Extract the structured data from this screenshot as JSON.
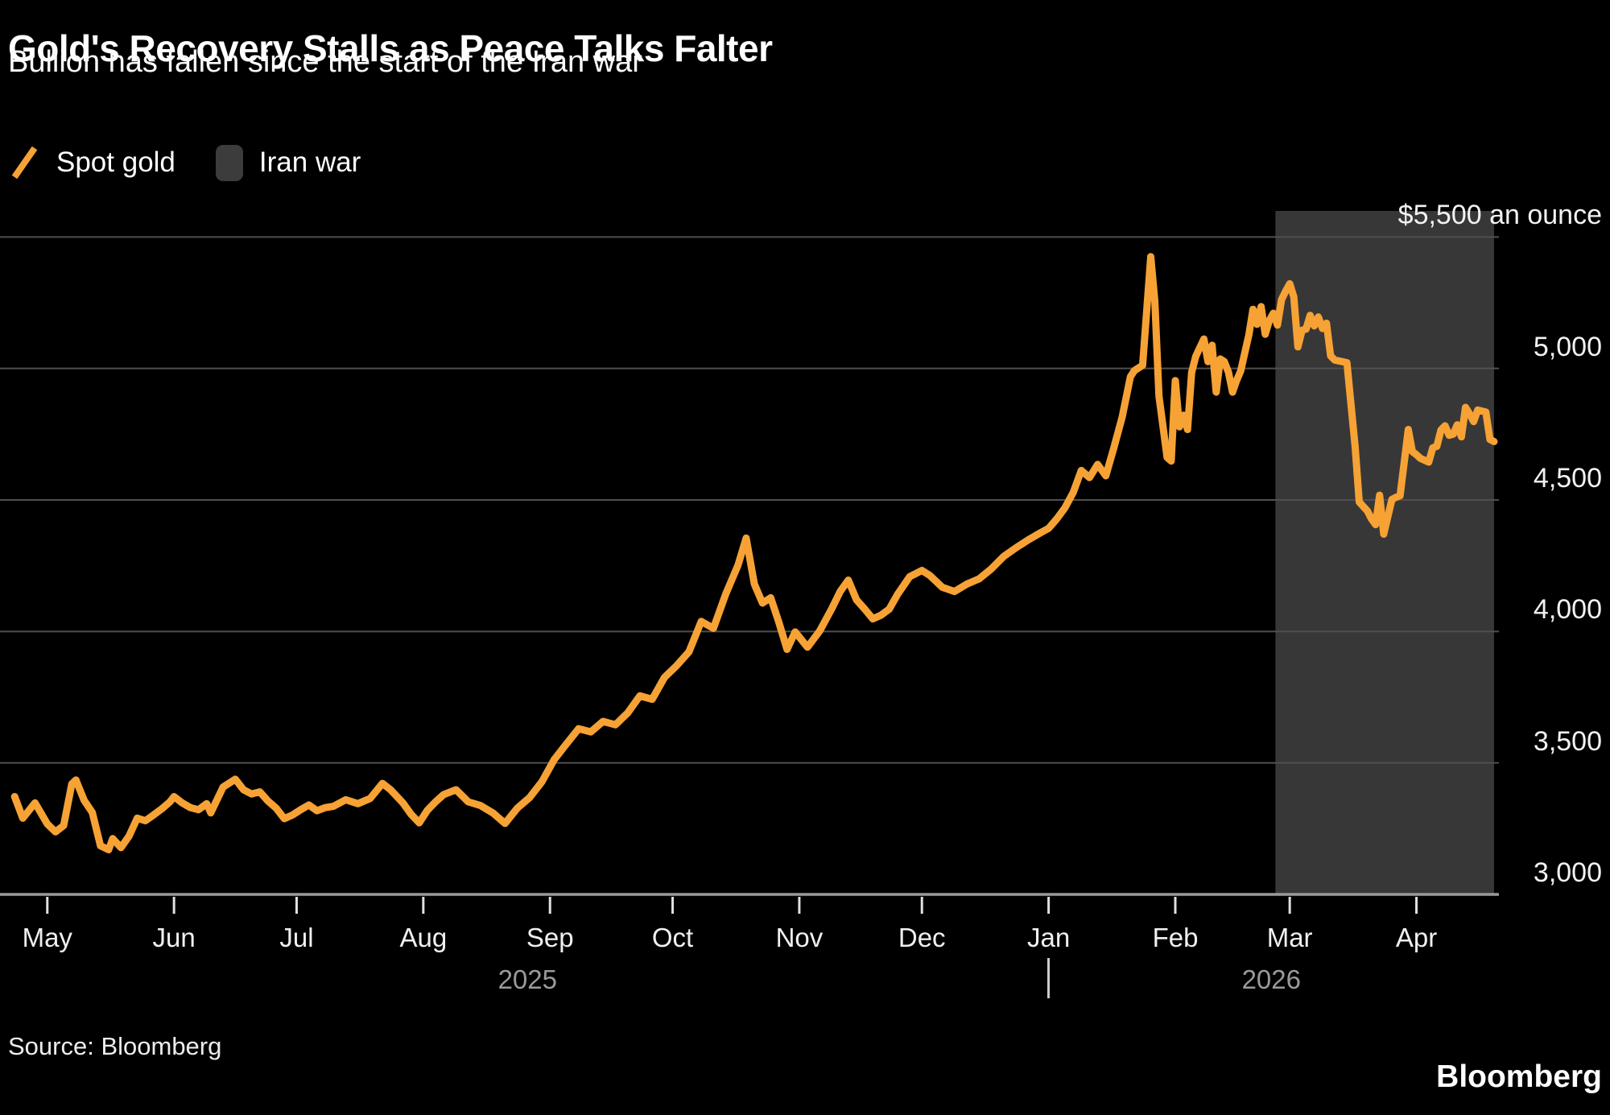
{
  "header": {
    "title": "Gold's Recovery Stalls as Peace Talks Falter",
    "subtitle": "Bullion has fallen since the start of the Iran war"
  },
  "legend": [
    {
      "label": "Spot gold",
      "type": "line",
      "color": "#F6A235"
    },
    {
      "label": "Iran war",
      "type": "box",
      "color": "#3c3c3c"
    }
  ],
  "footer": {
    "source": "Source: Bloomberg",
    "logo": "Bloomberg"
  },
  "chart_data": {
    "type": "line",
    "title": "Gold's Recovery Stalls as Peace Talks Falter",
    "subtitle": "Bullion has fallen since the start of the Iran war",
    "ylabel": "$ an ounce",
    "ylim": [
      3000,
      5600
    ],
    "grid": "horizontal",
    "legend_position": "top-left",
    "colors": {
      "line": "#F6A235",
      "band": "#373737",
      "gridline": "#4f4f4f",
      "axis": "#9a9a9a",
      "tick": "#e0e0e0",
      "background": "#000000"
    },
    "x_domain_days": 364,
    "y_ticks": [
      {
        "value": 5500,
        "label": "$5,500 an ounce"
      },
      {
        "value": 5000,
        "label": "5,000"
      },
      {
        "value": 4500,
        "label": "4,500"
      },
      {
        "value": 4000,
        "label": "4,000"
      },
      {
        "value": 3500,
        "label": "3,500"
      },
      {
        "value": 3000,
        "label": "3,000"
      }
    ],
    "x_ticks": [
      {
        "day": 10,
        "label": "May"
      },
      {
        "day": 41,
        "label": "Jun"
      },
      {
        "day": 71,
        "label": "Jul"
      },
      {
        "day": 102,
        "label": "Aug"
      },
      {
        "day": 133,
        "label": "Sep"
      },
      {
        "day": 163,
        "label": "Oct"
      },
      {
        "day": 194,
        "label": "Nov"
      },
      {
        "day": 224,
        "label": "Dec"
      },
      {
        "day": 255,
        "label": "Jan"
      },
      {
        "day": 286,
        "label": "Feb"
      },
      {
        "day": 314,
        "label": "Mar"
      },
      {
        "day": 345,
        "label": "Apr"
      }
    ],
    "year_labels": [
      {
        "day": 127.5,
        "label": "2025"
      },
      {
        "day": 309.5,
        "label": "2026"
      }
    ],
    "year_divider_day": 255,
    "band": {
      "name": "Iran war",
      "start_day": 310.5,
      "end_day": 364
    },
    "series": [
      {
        "name": "Spot gold",
        "points": [
          [
            2,
            3372
          ],
          [
            4,
            3290
          ],
          [
            7,
            3348
          ],
          [
            10,
            3268
          ],
          [
            12,
            3238
          ],
          [
            14,
            3262
          ],
          [
            16,
            3420
          ],
          [
            17,
            3435
          ],
          [
            19,
            3358
          ],
          [
            21,
            3312
          ],
          [
            23,
            3185
          ],
          [
            25,
            3170
          ],
          [
            26,
            3212
          ],
          [
            28,
            3178
          ],
          [
            30,
            3222
          ],
          [
            32,
            3290
          ],
          [
            34,
            3280
          ],
          [
            36,
            3302
          ],
          [
            38,
            3325
          ],
          [
            40,
            3352
          ],
          [
            41,
            3372
          ],
          [
            43,
            3348
          ],
          [
            45,
            3330
          ],
          [
            47,
            3322
          ],
          [
            49,
            3345
          ],
          [
            50,
            3310
          ],
          [
            53,
            3408
          ],
          [
            56,
            3438
          ],
          [
            58,
            3398
          ],
          [
            60,
            3382
          ],
          [
            62,
            3390
          ],
          [
            64,
            3355
          ],
          [
            66,
            3328
          ],
          [
            68,
            3288
          ],
          [
            70,
            3302
          ],
          [
            72,
            3322
          ],
          [
            74,
            3340
          ],
          [
            76,
            3318
          ],
          [
            78,
            3330
          ],
          [
            80,
            3335
          ],
          [
            83,
            3360
          ],
          [
            86,
            3345
          ],
          [
            89,
            3365
          ],
          [
            92,
            3422
          ],
          [
            94,
            3398
          ],
          [
            97,
            3348
          ],
          [
            99,
            3305
          ],
          [
            101,
            3272
          ],
          [
            103,
            3320
          ],
          [
            105,
            3352
          ],
          [
            107,
            3380
          ],
          [
            110,
            3398
          ],
          [
            113,
            3352
          ],
          [
            116,
            3338
          ],
          [
            119,
            3310
          ],
          [
            122,
            3270
          ],
          [
            125,
            3328
          ],
          [
            128,
            3368
          ],
          [
            131,
            3428
          ],
          [
            134,
            3512
          ],
          [
            137,
            3572
          ],
          [
            140,
            3630
          ],
          [
            143,
            3618
          ],
          [
            146,
            3658
          ],
          [
            149,
            3645
          ],
          [
            152,
            3690
          ],
          [
            155,
            3755
          ],
          [
            158,
            3742
          ],
          [
            161,
            3825
          ],
          [
            164,
            3870
          ],
          [
            167,
            3922
          ],
          [
            170,
            4038
          ],
          [
            173,
            4012
          ],
          [
            176,
            4142
          ],
          [
            179,
            4252
          ],
          [
            181,
            4355
          ],
          [
            183,
            4180
          ],
          [
            185,
            4108
          ],
          [
            187,
            4128
          ],
          [
            189,
            4035
          ],
          [
            191,
            3932
          ],
          [
            193,
            3998
          ],
          [
            196,
            3940
          ],
          [
            199,
            4002
          ],
          [
            202,
            4088
          ],
          [
            204,
            4152
          ],
          [
            206,
            4195
          ],
          [
            208,
            4120
          ],
          [
            210,
            4085
          ],
          [
            212,
            4048
          ],
          [
            214,
            4062
          ],
          [
            216,
            4085
          ],
          [
            218,
            4140
          ],
          [
            221,
            4208
          ],
          [
            224,
            4232
          ],
          [
            226,
            4212
          ],
          [
            229,
            4168
          ],
          [
            232,
            4152
          ],
          [
            235,
            4180
          ],
          [
            238,
            4200
          ],
          [
            241,
            4238
          ],
          [
            244,
            4285
          ],
          [
            247,
            4318
          ],
          [
            250,
            4348
          ],
          [
            253,
            4375
          ],
          [
            255,
            4392
          ],
          [
            257,
            4428
          ],
          [
            259,
            4470
          ],
          [
            261,
            4528
          ],
          [
            263,
            4612
          ],
          [
            265,
            4585
          ],
          [
            267,
            4635
          ],
          [
            269,
            4592
          ],
          [
            271,
            4700
          ],
          [
            273,
            4815
          ],
          [
            275,
            4968
          ],
          [
            276,
            4992
          ],
          [
            278,
            5012
          ],
          [
            280,
            5425
          ],
          [
            281,
            5255
          ],
          [
            282,
            4895
          ],
          [
            284,
            4662
          ],
          [
            285,
            4648
          ],
          [
            286,
            4954
          ],
          [
            287,
            4778
          ],
          [
            288,
            4822
          ],
          [
            289,
            4768
          ],
          [
            290,
            4985
          ],
          [
            291,
            5046
          ],
          [
            293,
            5112
          ],
          [
            294,
            5026
          ],
          [
            295,
            5088
          ],
          [
            296,
            4910
          ],
          [
            297,
            5036
          ],
          [
            298,
            5026
          ],
          [
            299,
            4986
          ],
          [
            300,
            4910
          ],
          [
            301,
            4955
          ],
          [
            302,
            4990
          ],
          [
            304,
            5128
          ],
          [
            305,
            5225
          ],
          [
            306,
            5168
          ],
          [
            307,
            5235
          ],
          [
            308,
            5130
          ],
          [
            309,
            5182
          ],
          [
            310,
            5210
          ],
          [
            311,
            5165
          ],
          [
            312,
            5262
          ],
          [
            313,
            5294
          ],
          [
            314,
            5322
          ],
          [
            315,
            5272
          ],
          [
            316,
            5082
          ],
          [
            317,
            5145
          ],
          [
            318,
            5150
          ],
          [
            319,
            5202
          ],
          [
            320,
            5162
          ],
          [
            321,
            5196
          ],
          [
            322,
            5152
          ],
          [
            323,
            5172
          ],
          [
            324,
            5048
          ],
          [
            325,
            5032
          ],
          [
            328,
            5022
          ],
          [
            329,
            4862
          ],
          [
            330,
            4702
          ],
          [
            331,
            4492
          ],
          [
            333,
            4458
          ],
          [
            334,
            4428
          ],
          [
            335,
            4406
          ],
          [
            336,
            4518
          ],
          [
            337,
            4370
          ],
          [
            339,
            4502
          ],
          [
            340,
            4510
          ],
          [
            341,
            4516
          ],
          [
            343,
            4768
          ],
          [
            344,
            4684
          ],
          [
            345,
            4672
          ],
          [
            346,
            4658
          ],
          [
            348,
            4644
          ],
          [
            349,
            4698
          ],
          [
            350,
            4704
          ],
          [
            351,
            4766
          ],
          [
            352,
            4782
          ],
          [
            353,
            4746
          ],
          [
            354,
            4750
          ],
          [
            355,
            4786
          ],
          [
            356,
            4740
          ],
          [
            357,
            4852
          ],
          [
            358,
            4828
          ],
          [
            359,
            4798
          ],
          [
            360,
            4842
          ],
          [
            361,
            4838
          ],
          [
            362,
            4834
          ],
          [
            363,
            4730
          ],
          [
            364,
            4722
          ]
        ]
      }
    ]
  }
}
